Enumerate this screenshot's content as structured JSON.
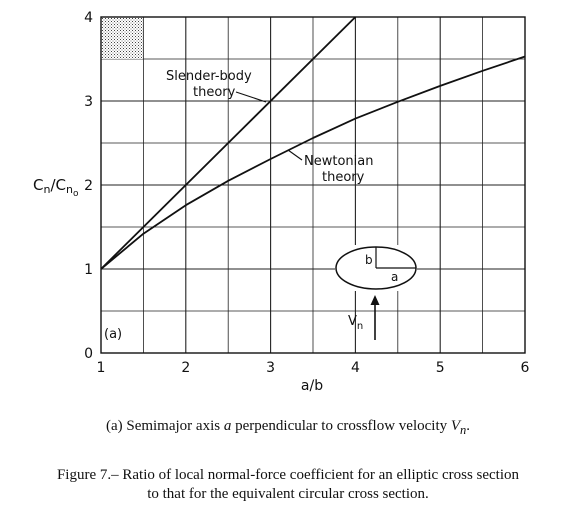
{
  "chart_data": {
    "type": "line",
    "xlabel": "a/b",
    "ylabel": "Cn/Cno",
    "xlim": [
      1,
      6
    ],
    "ylim": [
      0,
      4
    ],
    "x_ticks": [
      "1",
      "2",
      "3",
      "4",
      "5",
      "6"
    ],
    "y_ticks": [
      "0",
      "1",
      "2",
      "3",
      "4"
    ],
    "grid": true,
    "series": [
      {
        "name": "Slender-body theory",
        "x": [
          1,
          4
        ],
        "y": [
          1,
          4
        ]
      },
      {
        "name": "Newtonian theory",
        "x": [
          1,
          1.5,
          2,
          2.5,
          3,
          3.5,
          4,
          4.5,
          5,
          5.5,
          6
        ],
        "y": [
          1.0,
          1.42,
          1.76,
          2.05,
          2.31,
          2.56,
          2.79,
          2.99,
          3.18,
          3.36,
          3.53
        ]
      }
    ],
    "annotations": {
      "slender_label_1": "Slender-body",
      "slender_label_2": "theory",
      "newtonian_label_1": "Newtonian",
      "newtonian_label_2": "theory",
      "panel_label": "(a)",
      "inset_b": "b",
      "inset_a": "a",
      "velocity_label": "V",
      "velocity_subscript": "n"
    }
  },
  "captions": {
    "subcaption_prefix": "(a)  Semimajor axis ",
    "subcaption_a": "a",
    "subcaption_middle": " perpendicular to crossflow velocity ",
    "subcaption_v": "V",
    "subcaption_v_sub": "n",
    "subcaption_end": ".",
    "figure_line_1": "Figure 7.– Ratio of local normal-force coefficient for an elliptic cross section",
    "figure_line_2": "to that for the equivalent circular cross section."
  }
}
